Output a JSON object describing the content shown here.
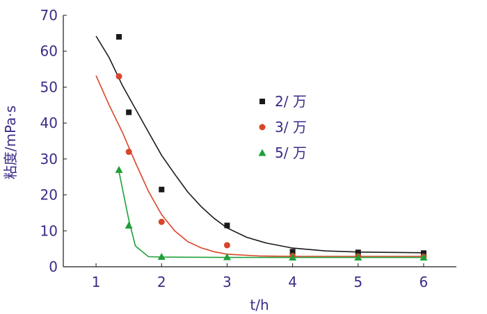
{
  "chart_data": {
    "type": "scatter",
    "xlabel": "t/h",
    "ylabel": "粘度/mPa·s",
    "xlim": [
      0.5,
      6.5
    ],
    "ylim": [
      0,
      70
    ],
    "xticks": [
      1,
      2,
      3,
      4,
      5,
      6
    ],
    "yticks": [
      0,
      10,
      20,
      30,
      40,
      50,
      60,
      70
    ],
    "grid": false,
    "legend_position": "right-middle",
    "series": [
      {
        "name": "2/ 万",
        "marker": "square",
        "color": "#1a1a1a",
        "points": [
          [
            1.35,
            64
          ],
          [
            1.5,
            43
          ],
          [
            2.0,
            21.5
          ],
          [
            3.0,
            11.5
          ],
          [
            4.0,
            4.2
          ],
          [
            5.0,
            4.0
          ],
          [
            6.0,
            3.8
          ]
        ],
        "fit": [
          [
            1.0,
            64.2
          ],
          [
            1.2,
            58.2
          ],
          [
            1.4,
            50.5
          ],
          [
            1.6,
            44.0
          ],
          [
            1.8,
            37.5
          ],
          [
            2.0,
            31.0
          ],
          [
            2.2,
            25.8
          ],
          [
            2.4,
            20.8
          ],
          [
            2.6,
            16.8
          ],
          [
            2.8,
            13.5
          ],
          [
            3.0,
            10.8
          ],
          [
            3.3,
            8.2
          ],
          [
            3.6,
            6.6
          ],
          [
            4.0,
            5.2
          ],
          [
            4.5,
            4.4
          ],
          [
            5.0,
            4.1
          ],
          [
            6.0,
            3.9
          ]
        ]
      },
      {
        "name": "3/ 万",
        "marker": "circle",
        "color": "#d9452a",
        "points": [
          [
            1.35,
            53
          ],
          [
            1.5,
            32
          ],
          [
            2.0,
            12.5
          ],
          [
            3.0,
            6.0
          ],
          [
            4.0,
            3.0
          ],
          [
            5.0,
            2.9
          ],
          [
            6.0,
            2.8
          ]
        ],
        "fit": [
          [
            1.0,
            53.2
          ],
          [
            1.2,
            45.0
          ],
          [
            1.4,
            37.5
          ],
          [
            1.6,
            29.0
          ],
          [
            1.8,
            21.0
          ],
          [
            2.0,
            14.5
          ],
          [
            2.2,
            10.0
          ],
          [
            2.4,
            7.0
          ],
          [
            2.6,
            5.3
          ],
          [
            2.8,
            4.2
          ],
          [
            3.0,
            3.5
          ],
          [
            3.5,
            3.0
          ],
          [
            4.0,
            2.9
          ],
          [
            5.0,
            2.9
          ],
          [
            6.0,
            2.9
          ]
        ]
      },
      {
        "name": "5/ 万",
        "marker": "triangle",
        "color": "#1fa038",
        "points": [
          [
            1.35,
            27
          ],
          [
            1.5,
            11.5
          ],
          [
            2.0,
            2.8
          ],
          [
            3.0,
            2.7
          ],
          [
            4.0,
            2.6
          ],
          [
            5.0,
            2.6
          ],
          [
            6.0,
            2.6
          ]
        ],
        "fit": [
          [
            1.35,
            26.5
          ],
          [
            1.5,
            13.0
          ],
          [
            1.6,
            5.8
          ],
          [
            1.8,
            2.8
          ],
          [
            2.0,
            2.7
          ],
          [
            3.0,
            2.6
          ],
          [
            4.0,
            2.6
          ],
          [
            5.0,
            2.6
          ],
          [
            6.0,
            2.6
          ]
        ]
      }
    ]
  }
}
